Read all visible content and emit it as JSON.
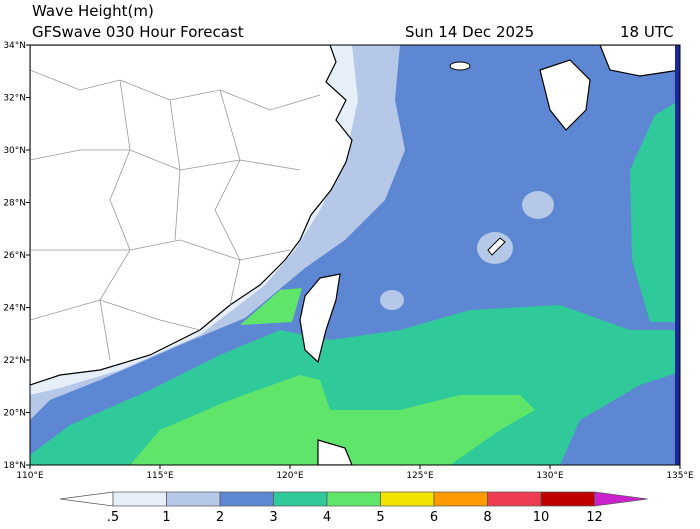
{
  "header": {
    "title": "Wave Height(m)",
    "subtitle": "GFSwave 030 Hour Forecast",
    "date": "Sun 14 Dec 2025",
    "time": "18 UTC"
  },
  "map": {
    "lat_ticks": [
      {
        "value": 18,
        "label": "18°N"
      },
      {
        "value": 20,
        "label": "20°N"
      },
      {
        "value": 22,
        "label": "22°N"
      },
      {
        "value": 24,
        "label": "24°N"
      },
      {
        "value": 26,
        "label": "26°N"
      },
      {
        "value": 28,
        "label": "28°N"
      },
      {
        "value": 30,
        "label": "30°N"
      },
      {
        "value": 32,
        "label": "32°N"
      },
      {
        "value": 34,
        "label": "34°N"
      }
    ],
    "lon_ticks": [
      {
        "value": 110,
        "label": "110°E"
      },
      {
        "value": 115,
        "label": "115°E"
      },
      {
        "value": 120,
        "label": "120°E"
      },
      {
        "value": 125,
        "label": "125°E"
      },
      {
        "value": 130,
        "label": "130°E"
      },
      {
        "value": 135,
        "label": "135°E"
      }
    ],
    "lat_range": [
      18,
      34
    ],
    "lon_range": [
      110,
      135
    ]
  },
  "legend": {
    "levels": [
      {
        "value": 0.5,
        "label": ".5"
      },
      1,
      2,
      3,
      4,
      5,
      6,
      8,
      10,
      12
    ],
    "colors": [
      "#ffffff",
      "#e6eef8",
      "#b5c8e8",
      "#5d87d2",
      "#2fc99a",
      "#5fe66a",
      "#f2e400",
      "#ff9a00",
      "#ee3c50",
      "#c00000",
      "#cc22cc"
    ]
  }
}
